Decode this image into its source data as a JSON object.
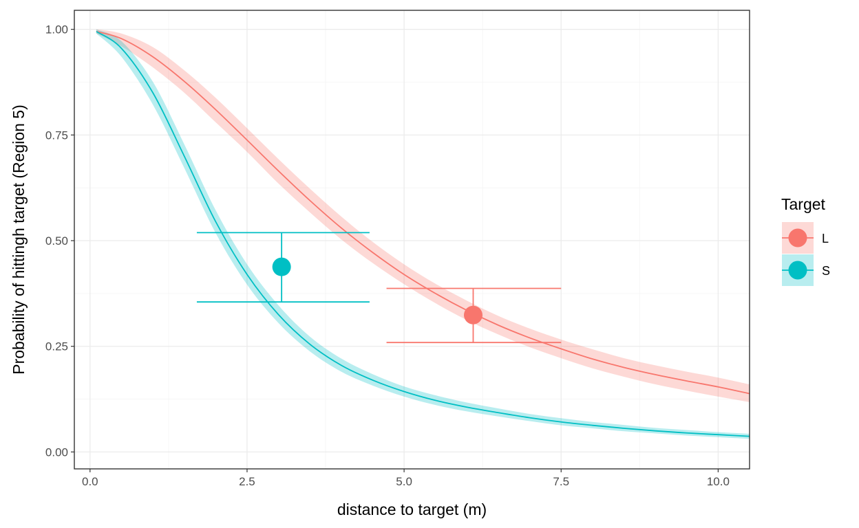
{
  "chart_data": {
    "type": "line",
    "title": "",
    "xlabel": "distance to target (m)",
    "ylabel": "Probability of hittingh target (Region 5)",
    "xlim": [
      -0.25,
      10.5
    ],
    "ylim": [
      -0.04,
      1.045
    ],
    "xticks": [
      0.0,
      2.5,
      5.0,
      7.5,
      10.0
    ],
    "xtick_labels": [
      "0.0",
      "2.5",
      "5.0",
      "7.5",
      "10.0"
    ],
    "yticks": [
      0.0,
      0.25,
      0.5,
      0.75,
      1.0
    ],
    "ytick_labels": [
      "0.00",
      "0.25",
      "0.50",
      "0.75",
      "1.00"
    ],
    "grid": true,
    "legend": {
      "title": "Target",
      "position": "right"
    },
    "series": [
      {
        "name": "L",
        "color": "#F8766D",
        "x": [
          0.1,
          0.5,
          1.0,
          1.5,
          2.0,
          2.5,
          3.0,
          3.5,
          4.0,
          4.5,
          5.0,
          5.5,
          6.0,
          6.5,
          7.0,
          7.5,
          8.0,
          8.5,
          9.0,
          9.5,
          10.0,
          10.5
        ],
        "y": [
          0.995,
          0.978,
          0.935,
          0.877,
          0.81,
          0.738,
          0.665,
          0.595,
          0.53,
          0.472,
          0.42,
          0.375,
          0.335,
          0.3,
          0.27,
          0.244,
          0.22,
          0.2,
          0.183,
          0.168,
          0.154,
          0.138
        ],
        "lower": [
          0.99,
          0.96,
          0.91,
          0.85,
          0.78,
          0.71,
          0.635,
          0.567,
          0.503,
          0.447,
          0.397,
          0.352,
          0.312,
          0.278,
          0.248,
          0.222,
          0.198,
          0.178,
          0.16,
          0.145,
          0.131,
          0.118
        ],
        "upper": [
          1.0,
          0.99,
          0.958,
          0.903,
          0.838,
          0.766,
          0.693,
          0.623,
          0.557,
          0.497,
          0.444,
          0.398,
          0.358,
          0.322,
          0.292,
          0.266,
          0.243,
          0.222,
          0.205,
          0.19,
          0.176,
          0.16
        ],
        "point": {
          "x": 6.1,
          "y": 0.324
        },
        "error_x": [
          4.72,
          7.5
        ],
        "error_y": [
          0.259,
          0.387
        ]
      },
      {
        "name": "S",
        "color": "#00BFC4",
        "x": [
          0.1,
          0.5,
          1.0,
          1.5,
          2.0,
          2.5,
          3.0,
          3.5,
          4.0,
          4.5,
          5.0,
          5.5,
          6.0,
          6.5,
          7.0,
          7.5,
          8.0,
          8.5,
          9.0,
          9.5,
          10.0,
          10.5
        ],
        "y": [
          0.995,
          0.955,
          0.85,
          0.7,
          0.545,
          0.42,
          0.325,
          0.255,
          0.205,
          0.17,
          0.143,
          0.122,
          0.106,
          0.093,
          0.081,
          0.071,
          0.063,
          0.056,
          0.05,
          0.045,
          0.041,
          0.037
        ],
        "lower": [
          0.99,
          0.935,
          0.822,
          0.672,
          0.518,
          0.396,
          0.305,
          0.238,
          0.19,
          0.157,
          0.131,
          0.111,
          0.096,
          0.084,
          0.073,
          0.063,
          0.056,
          0.049,
          0.044,
          0.039,
          0.035,
          0.031
        ],
        "upper": [
          1.0,
          0.972,
          0.876,
          0.728,
          0.572,
          0.444,
          0.347,
          0.273,
          0.221,
          0.184,
          0.155,
          0.134,
          0.117,
          0.103,
          0.09,
          0.08,
          0.071,
          0.064,
          0.057,
          0.052,
          0.047,
          0.043
        ],
        "point": {
          "x": 3.05,
          "y": 0.438
        },
        "error_x": [
          1.7,
          4.45
        ],
        "error_y": [
          0.355,
          0.519
        ]
      }
    ]
  }
}
